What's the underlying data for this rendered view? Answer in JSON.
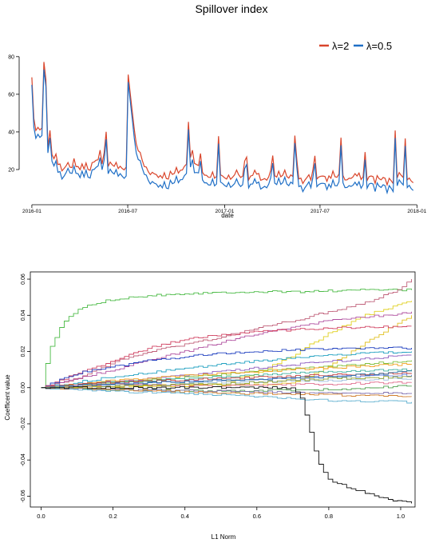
{
  "chart_data": [
    {
      "type": "line",
      "title": "Spillover index",
      "xlabel": "date",
      "ylabel": "",
      "x_tick_labels": [
        "2016-01",
        "2016-07",
        "2017-01",
        "2017-07",
        "2018-01"
      ],
      "y_tick_labels": [
        "20",
        "40",
        "60",
        "80"
      ],
      "xlim": [
        "2015-12-20",
        "2018-01-05"
      ],
      "ylim": [
        3,
        88
      ],
      "grid": false,
      "legend_position": "top-right",
      "legend": [
        "λ=2",
        "λ=0.5"
      ],
      "colors": {
        "lambda2": "#d9452b",
        "lambda05": "#1f6fc6"
      },
      "anchor_dates": [
        "2016-01-01",
        "2016-01-10",
        "2016-01-20",
        "2016-02-01",
        "2016-02-15",
        "2016-03-01",
        "2016-03-15",
        "2016-04-01",
        "2016-04-20",
        "2016-05-01",
        "2016-05-10",
        "2016-06-01",
        "2016-06-20",
        "2016-07-01",
        "2016-07-05",
        "2016-07-15",
        "2016-08-01",
        "2016-08-15",
        "2016-09-01",
        "2016-09-15",
        "2016-10-01",
        "2016-10-20",
        "2016-11-01",
        "2016-11-10",
        "2016-11-25",
        "2016-12-15",
        "2017-01-10",
        "2017-01-25",
        "2017-02-15",
        "2017-03-01",
        "2017-03-20",
        "2017-04-10",
        "2017-04-25",
        "2017-05-10",
        "2017-05-25",
        "2017-06-10",
        "2017-06-25",
        "2017-07-10",
        "2017-07-25",
        "2017-08-10",
        "2017-08-25",
        "2017-09-10",
        "2017-09-25",
        "2017-10-10",
        "2017-10-25",
        "2017-11-10",
        "2017-11-25",
        "2017-12-10",
        "2017-12-25"
      ],
      "series": [
        {
          "name": "λ=2",
          "values": [
            55,
            38,
            42,
            33,
            25,
            22,
            20,
            22,
            21,
            24,
            22,
            23,
            20,
            22,
            60,
            35,
            22,
            18,
            17,
            16,
            18,
            22,
            30,
            22,
            17,
            16,
            16,
            18,
            16,
            17,
            15,
            16,
            17,
            15,
            16,
            15,
            16,
            15,
            17,
            16,
            15,
            17,
            15,
            16,
            15,
            14,
            17,
            15,
            14
          ]
        },
        {
          "name": "λ=0.5",
          "values": [
            50,
            34,
            38,
            30,
            21,
            18,
            17,
            18,
            17,
            20,
            19,
            19,
            16,
            17,
            55,
            30,
            18,
            13,
            12,
            11,
            13,
            17,
            25,
            18,
            13,
            12,
            12,
            13,
            12,
            12,
            11,
            12,
            13,
            11,
            12,
            11,
            12,
            11,
            12,
            12,
            11,
            12,
            11,
            12,
            11,
            10,
            13,
            11,
            10
          ]
        }
      ],
      "spikes": [
        {
          "date": "2016-01-01",
          "value": 69
        },
        {
          "date": "2016-01-25",
          "value": 84
        },
        {
          "date": "2016-02-05",
          "value": 45
        },
        {
          "date": "2016-03-20",
          "value": 32
        },
        {
          "date": "2016-05-10",
          "value": 33
        },
        {
          "date": "2016-05-20",
          "value": 46
        },
        {
          "date": "2016-07-03",
          "value": 77
        },
        {
          "date": "2016-07-08",
          "value": 60
        },
        {
          "date": "2016-10-25",
          "value": 50
        },
        {
          "date": "2016-11-15",
          "value": 35
        },
        {
          "date": "2016-12-20",
          "value": 40
        },
        {
          "date": "2017-02-10",
          "value": 37
        },
        {
          "date": "2017-04-01",
          "value": 35
        },
        {
          "date": "2017-05-15",
          "value": 43
        },
        {
          "date": "2017-06-20",
          "value": 35
        },
        {
          "date": "2017-08-10",
          "value": 38
        },
        {
          "date": "2017-09-25",
          "value": 32
        },
        {
          "date": "2017-11-20",
          "value": 45
        },
        {
          "date": "2017-12-10",
          "value": 38
        }
      ]
    },
    {
      "type": "line",
      "title": "",
      "xlabel": "L1 Norm",
      "ylabel": "Coefficent value",
      "x_tick_labels": [
        "0.0",
        "0.2",
        "0.4",
        "0.6",
        "0.8",
        "1.0"
      ],
      "y_tick_labels": [
        "-0.06",
        "-0.04",
        "-0.02",
        "0.00",
        "0.02",
        "0.04",
        "0.06"
      ],
      "xlim": [
        -0.03,
        1.04
      ],
      "ylim": [
        -0.066,
        0.064
      ],
      "grid": false,
      "note": "LASSO coefficient paths; dozens of unlabeled colored series, values approximated",
      "paths": [
        {
          "color": "#4cbb47",
          "x": [
            0,
            0.02,
            0.05,
            0.08,
            0.12,
            0.2,
            0.3,
            0.4,
            0.55,
            0.7,
            0.9,
            1.03
          ],
          "values": [
            0,
            0.02,
            0.033,
            0.04,
            0.045,
            0.049,
            0.051,
            0.052,
            0.053,
            0.053,
            0.054,
            0.054
          ]
        },
        {
          "color": "#c0607a",
          "x": [
            0,
            0.1,
            0.2,
            0.3,
            0.4,
            0.5,
            0.6,
            0.7,
            0.8,
            0.9,
            1.0,
            1.03
          ],
          "values": [
            0,
            0.005,
            0.014,
            0.02,
            0.024,
            0.028,
            0.033,
            0.037,
            0.042,
            0.047,
            0.055,
            0.06
          ]
        },
        {
          "color": "#e0d020",
          "x": [
            0,
            0.5,
            0.6,
            0.7,
            0.8,
            0.9,
            1.0,
            1.03
          ],
          "values": [
            0,
            0.002,
            0.008,
            0.018,
            0.03,
            0.04,
            0.046,
            0.048
          ]
        },
        {
          "color": "#b050a0",
          "x": [
            0,
            0.2,
            0.4,
            0.6,
            0.8,
            1.0,
            1.03
          ],
          "values": [
            0,
            0.01,
            0.02,
            0.03,
            0.037,
            0.041,
            0.042
          ]
        },
        {
          "color": "#e0c020",
          "x": [
            0,
            0.7,
            0.8,
            0.9,
            1.0,
            1.03
          ],
          "values": [
            0,
            0.002,
            0.012,
            0.025,
            0.037,
            0.04
          ]
        },
        {
          "color": "#d04060",
          "x": [
            0,
            0.1,
            0.2,
            0.3,
            0.4,
            0.6,
            0.8,
            1.03
          ],
          "values": [
            0,
            0.008,
            0.015,
            0.022,
            0.027,
            0.031,
            0.033,
            0.034
          ]
        },
        {
          "color": "#2040c0",
          "x": [
            0,
            0.1,
            0.3,
            0.5,
            0.7,
            1.03
          ],
          "values": [
            0,
            0.008,
            0.015,
            0.019,
            0.021,
            0.022
          ]
        },
        {
          "color": "#20a0c0",
          "x": [
            0,
            0.2,
            0.5,
            0.8,
            1.03
          ],
          "values": [
            0,
            0.006,
            0.013,
            0.018,
            0.02
          ]
        },
        {
          "color": "#9060c0",
          "x": [
            0,
            0.3,
            0.6,
            0.9,
            1.03
          ],
          "values": [
            0,
            0.005,
            0.011,
            0.016,
            0.018
          ]
        },
        {
          "color": "#80c040",
          "x": [
            0,
            0.3,
            0.6,
            0.9,
            1.03
          ],
          "values": [
            0,
            0.004,
            0.009,
            0.013,
            0.015
          ]
        },
        {
          "color": "#f0a020",
          "x": [
            0,
            0.2,
            0.5,
            0.8,
            1.03
          ],
          "values": [
            0,
            0.004,
            0.008,
            0.011,
            0.013
          ]
        },
        {
          "color": "#40b0a0",
          "x": [
            0,
            0.2,
            0.5,
            0.8,
            1.03
          ],
          "values": [
            0,
            0.003,
            0.006,
            0.009,
            0.01
          ]
        },
        {
          "color": "#c04040",
          "x": [
            0,
            0.2,
            0.5,
            0.8,
            1.03
          ],
          "values": [
            0,
            0.003,
            0.005,
            0.007,
            0.008
          ]
        },
        {
          "color": "#6080e0",
          "x": [
            0,
            0.2,
            0.5,
            0.8,
            1.03
          ],
          "values": [
            0,
            0.002,
            0.004,
            0.006,
            0.007
          ]
        },
        {
          "color": "#a0c0e0",
          "x": [
            0,
            0.2,
            0.5,
            0.8,
            1.03
          ],
          "values": [
            0,
            0.001,
            0.003,
            0.004,
            0.005
          ]
        },
        {
          "color": "#50a050",
          "x": [
            0,
            0.2,
            0.5,
            0.8,
            1.03
          ],
          "values": [
            0,
            -0.001,
            -0.002,
            -0.001,
            0.001
          ]
        },
        {
          "color": "#8070b0",
          "x": [
            0,
            0.2,
            0.5,
            0.8,
            1.03
          ],
          "values": [
            0,
            -0.001,
            -0.002,
            -0.003,
            -0.003
          ]
        },
        {
          "color": "#d08030",
          "x": [
            0,
            0.2,
            0.5,
            0.8,
            1.03
          ],
          "values": [
            0,
            -0.001,
            -0.003,
            -0.004,
            -0.005
          ]
        },
        {
          "color": "#60b0d0",
          "x": [
            0,
            0.2,
            0.5,
            0.8,
            1.03
          ],
          "values": [
            0,
            -0.002,
            -0.004,
            -0.007,
            -0.008
          ]
        },
        {
          "color": "#e07090",
          "x": [
            0,
            0.2,
            0.5,
            0.8,
            1.03
          ],
          "values": [
            0,
            0.002,
            0.001,
            0.002,
            0.003
          ]
        },
        {
          "color": "#90a030",
          "x": [
            0,
            0.2,
            0.5,
            0.8,
            1.03
          ],
          "values": [
            0,
            0.001,
            0.002,
            0.005,
            0.006
          ]
        },
        {
          "color": "#3070a0",
          "x": [
            0,
            0.2,
            0.5,
            0.8,
            1.03
          ],
          "values": [
            0,
            0.002,
            0.004,
            0.006,
            0.009
          ]
        },
        {
          "color": "#111111",
          "x": [
            0,
            0.7,
            0.72,
            0.74,
            0.76,
            0.78,
            0.8,
            0.85,
            0.9,
            0.95,
            1.0,
            1.03
          ],
          "values": [
            0,
            0,
            -0.005,
            -0.02,
            -0.035,
            -0.046,
            -0.051,
            -0.055,
            -0.058,
            -0.061,
            -0.063,
            -0.064
          ]
        }
      ]
    }
  ]
}
